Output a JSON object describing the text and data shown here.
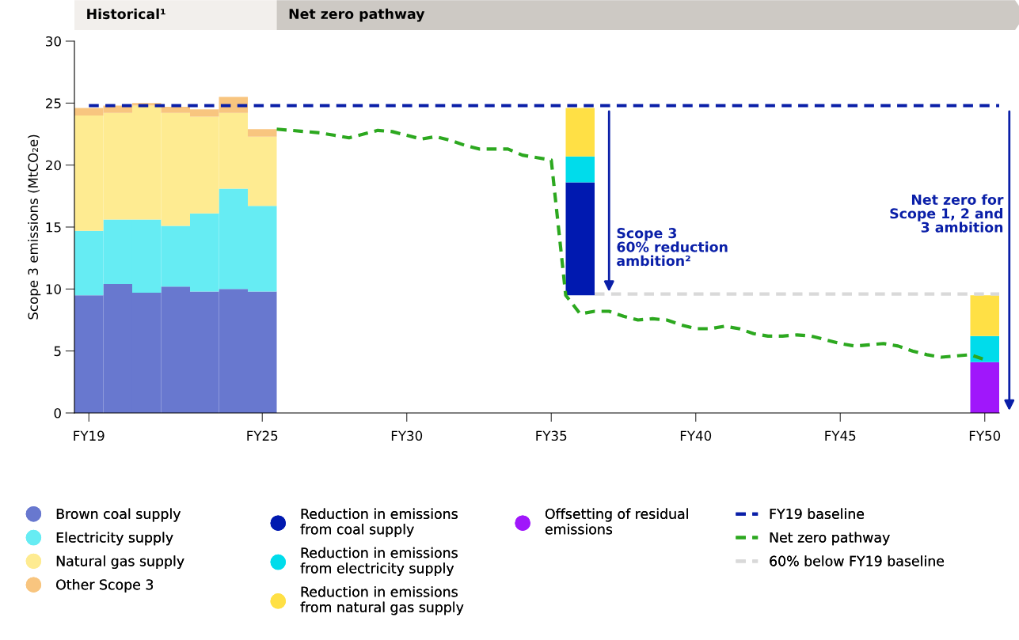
{
  "chart_data": {
    "type": "bar",
    "stacked": true,
    "ylabel": "Scope 3 emissions (MtCO₂e)",
    "categories": [
      "FY19",
      null,
      null,
      null,
      null,
      null,
      null,
      null,
      null,
      null,
      null,
      null,
      "FY25",
      null,
      null,
      null,
      null,
      null,
      null,
      null,
      null,
      null,
      "FY30",
      null,
      null,
      null,
      null,
      null,
      null,
      null,
      null,
      null,
      "FY35",
      null,
      null,
      null,
      null,
      null,
      null,
      null,
      null,
      null,
      "FY40",
      null,
      null,
      null,
      null,
      null,
      null,
      null,
      null,
      null,
      "FY45",
      null,
      null,
      null,
      null,
      null,
      null,
      null,
      null,
      null,
      "FY50",
      null
    ],
    "ylim": [
      0,
      30
    ],
    "yticks": [
      0,
      5,
      10,
      15,
      20,
      25,
      30
    ],
    "grid": false,
    "legend": "bottom",
    "series": [
      {
        "name": "Brown coal supply",
        "color": "#6878cf",
        "values": [
          9.5,
          null,
          10.4,
          null,
          9.7,
          null,
          10.2,
          null,
          9.8,
          null,
          10.0,
          null,
          9.8,
          null,
          null,
          null,
          null,
          null,
          null,
          null,
          null,
          null,
          null,
          null,
          null,
          null,
          null,
          null,
          null,
          null,
          null,
          null,
          null,
          null,
          null,
          null,
          null,
          null,
          null,
          null,
          null,
          null,
          null,
          null,
          null,
          null,
          null,
          null,
          null,
          null,
          null,
          null,
          null,
          null,
          null,
          null,
          null,
          null,
          null,
          null,
          null,
          null,
          null,
          null
        ]
      },
      {
        "name": "Electricity supply",
        "color": "#66ecf3",
        "values": [
          5.2,
          null,
          5.2,
          null,
          5.9,
          null,
          4.9,
          null,
          6.3,
          null,
          8.1,
          null,
          6.9,
          null,
          null,
          null,
          null,
          null,
          null,
          null,
          null,
          null,
          null,
          null,
          null,
          null,
          null,
          null,
          null,
          null,
          null,
          null,
          null,
          null,
          null,
          null,
          null,
          null,
          null,
          null,
          null,
          null,
          null,
          null,
          null,
          null,
          null,
          null,
          null,
          null,
          null,
          null,
          null,
          null,
          null,
          null,
          null,
          null,
          null,
          null,
          null,
          null,
          null,
          null
        ]
      },
      {
        "name": "Natural gas supply",
        "color": "#feeb91",
        "values": [
          9.3,
          null,
          8.6,
          null,
          9.2,
          null,
          9.1,
          null,
          7.8,
          null,
          6.1,
          null,
          5.6,
          null,
          null,
          null,
          null,
          null,
          null,
          null,
          null,
          null,
          null,
          null,
          null,
          null,
          null,
          null,
          null,
          null,
          null,
          null,
          null,
          null,
          null,
          null,
          null,
          null,
          null,
          null,
          null,
          null,
          null,
          null,
          null,
          null,
          null,
          null,
          null,
          null,
          null,
          null,
          null,
          null,
          null,
          null,
          null,
          null,
          null,
          null,
          null,
          null,
          null,
          null
        ]
      },
      {
        "name": "Other Scope 3",
        "color": "#f8c57f",
        "values": [
          0.6,
          null,
          0.6,
          null,
          0.2,
          null,
          0.5,
          null,
          0.6,
          null,
          1.3,
          null,
          0.6,
          null,
          null,
          null,
          null,
          null,
          null,
          null,
          null,
          null,
          null,
          null,
          null,
          null,
          null,
          null,
          null,
          null,
          null,
          null,
          null,
          null,
          null,
          null,
          null,
          null,
          null,
          null,
          null,
          null,
          null,
          null,
          null,
          null,
          null,
          null,
          null,
          null,
          null,
          null,
          null,
          null,
          null,
          null,
          null,
          null,
          null,
          null,
          null,
          null,
          null,
          null
        ]
      },
      {
        "name": "Reduction in emissions\nfrom coal supply",
        "color": "#0019b0",
        "base": [
          null,
          null,
          null,
          null,
          null,
          null,
          null,
          null,
          null,
          null,
          null,
          null,
          null,
          null,
          null,
          null,
          null,
          null,
          null,
          null,
          null,
          null,
          null,
          null,
          null,
          null,
          null,
          null,
          null,
          null,
          null,
          null,
          null,
          null,
          9.5,
          null,
          null,
          null,
          null,
          null,
          null,
          null,
          null,
          null,
          null,
          null,
          null,
          null,
          null,
          null,
          null,
          null,
          null,
          null,
          null,
          null,
          null,
          null,
          null,
          null,
          null,
          null,
          null,
          null
        ],
        "values": [
          null,
          null,
          null,
          null,
          null,
          null,
          null,
          null,
          null,
          null,
          null,
          null,
          null,
          null,
          null,
          null,
          null,
          null,
          null,
          null,
          null,
          null,
          null,
          null,
          null,
          null,
          null,
          null,
          null,
          null,
          null,
          null,
          null,
          null,
          9.1,
          null,
          null,
          null,
          null,
          null,
          null,
          null,
          null,
          null,
          null,
          null,
          null,
          null,
          null,
          null,
          null,
          null,
          null,
          null,
          null,
          null,
          null,
          null,
          null,
          null,
          null,
          null,
          null,
          null
        ]
      },
      {
        "name": "Offsetting of residual\nemissions",
        "color": "#a017fb",
        "values": [
          null,
          null,
          null,
          null,
          null,
          null,
          null,
          null,
          null,
          null,
          null,
          null,
          null,
          null,
          null,
          null,
          null,
          null,
          null,
          null,
          null,
          null,
          null,
          null,
          null,
          null,
          null,
          null,
          null,
          null,
          null,
          null,
          null,
          null,
          null,
          null,
          null,
          null,
          null,
          null,
          null,
          null,
          null,
          null,
          null,
          null,
          null,
          null,
          null,
          null,
          null,
          null,
          null,
          null,
          null,
          null,
          null,
          null,
          null,
          null,
          null,
          null,
          4.1,
          null
        ]
      },
      {
        "name": "Reduction in emissions\nfrom electricity supply",
        "color": "#00dceb",
        "values": [
          null,
          null,
          null,
          null,
          null,
          null,
          null,
          null,
          null,
          null,
          null,
          null,
          null,
          null,
          null,
          null,
          null,
          null,
          null,
          null,
          null,
          null,
          null,
          null,
          null,
          null,
          null,
          null,
          null,
          null,
          null,
          null,
          null,
          null,
          2.1,
          null,
          null,
          null,
          null,
          null,
          null,
          null,
          null,
          null,
          null,
          null,
          null,
          null,
          null,
          null,
          null,
          null,
          null,
          null,
          null,
          null,
          null,
          null,
          null,
          null,
          null,
          null,
          2.1,
          null
        ]
      },
      {
        "name": "Reduction in emissions\nfrom natural gas supply",
        "color": "#ffe045",
        "values": [
          null,
          null,
          null,
          null,
          null,
          null,
          null,
          null,
          null,
          null,
          null,
          null,
          null,
          null,
          null,
          null,
          null,
          null,
          null,
          null,
          null,
          null,
          null,
          null,
          null,
          null,
          null,
          null,
          null,
          null,
          null,
          null,
          null,
          null,
          3.9,
          null,
          null,
          null,
          null,
          null,
          null,
          null,
          null,
          null,
          null,
          null,
          null,
          null,
          null,
          null,
          null,
          null,
          null,
          null,
          null,
          null,
          null,
          null,
          null,
          null,
          null,
          null,
          3.3,
          null
        ]
      },
      {
        "name": "FY19 baseline",
        "type": "line",
        "line_style": "dashed",
        "color": "#0a1fa8",
        "values": [
          24.8,
          24.8,
          24.8,
          24.8,
          24.8,
          24.8,
          24.8,
          24.8,
          24.8,
          24.8,
          24.8,
          24.8,
          24.8,
          24.8,
          24.8,
          24.8,
          24.8,
          24.8,
          24.8,
          24.8,
          24.8,
          24.8,
          24.8,
          24.8,
          24.8,
          24.8,
          24.8,
          24.8,
          24.8,
          24.8,
          24.8,
          24.8,
          24.8,
          24.8,
          24.8,
          24.8,
          24.8,
          24.8,
          24.8,
          24.8,
          24.8,
          24.8,
          24.8,
          24.8,
          24.8,
          24.8,
          24.8,
          24.8,
          24.8,
          24.8,
          24.8,
          24.8,
          24.8,
          24.8,
          24.8,
          24.8,
          24.8,
          24.8,
          24.8,
          24.8,
          24.8,
          24.8,
          24.8,
          24.8
        ]
      },
      {
        "name": "Net zero pathway",
        "type": "line",
        "line_style": "dashed",
        "color": "#2ca81f",
        "values": [
          null,
          null,
          null,
          null,
          null,
          null,
          null,
          null,
          null,
          null,
          null,
          null,
          null,
          22.9,
          22.8,
          22.7,
          22.6,
          22.4,
          22.2,
          22.5,
          22.8,
          22.7,
          22.4,
          22.1,
          22.3,
          22.0,
          21.6,
          21.3,
          21.3,
          21.3,
          20.8,
          20.6,
          20.4,
          9.5,
          8.0,
          8.2,
          8.2,
          7.8,
          7.5,
          7.6,
          7.5,
          7.1,
          6.8,
          6.8,
          7.0,
          6.8,
          6.4,
          6.2,
          6.2,
          6.3,
          6.2,
          5.9,
          5.6,
          5.4,
          5.5,
          5.6,
          5.4,
          5.0,
          4.7,
          4.5,
          4.6,
          4.7,
          4.3,
          null
        ]
      },
      {
        "name": "60% below FY19 baseline",
        "type": "line",
        "line_style": "dashed",
        "color": "#d9d9d9",
        "values": [
          null,
          null,
          null,
          null,
          null,
          null,
          null,
          null,
          null,
          null,
          null,
          null,
          null,
          null,
          null,
          null,
          null,
          null,
          null,
          null,
          null,
          null,
          null,
          null,
          null,
          null,
          null,
          null,
          null,
          null,
          null,
          null,
          null,
          null,
          null,
          9.6,
          9.6,
          9.6,
          9.6,
          9.6,
          9.6,
          9.6,
          9.6,
          9.6,
          9.6,
          9.6,
          9.6,
          9.6,
          9.6,
          9.6,
          9.6,
          9.6,
          9.6,
          9.6,
          9.6,
          9.6,
          9.6,
          9.6,
          9.6,
          9.6,
          9.6,
          9.6,
          9.6,
          9.6
        ]
      }
    ],
    "annotations": [
      "Historical¹",
      "Net zero pathway",
      "Scope 3\n60% reduction\nambition²",
      "Net zero for\nScope 1, 2 and\n3 ambition"
    ]
  }
}
